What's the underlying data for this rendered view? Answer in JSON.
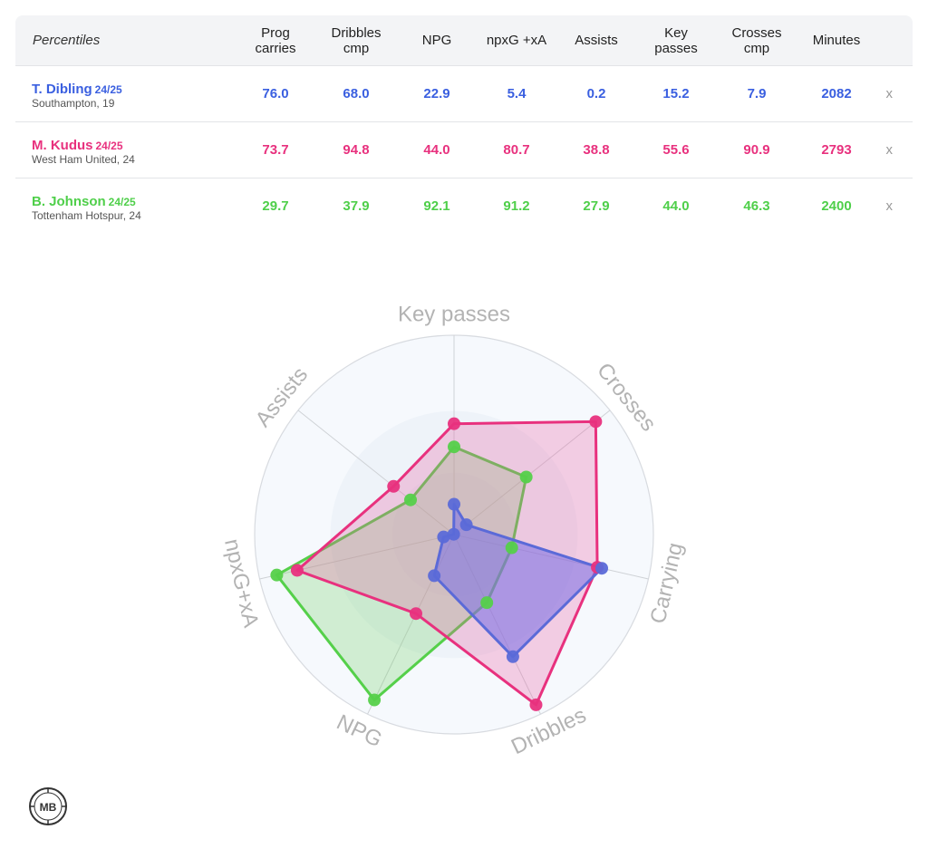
{
  "table": {
    "header_label": "Percentiles",
    "columns": [
      {
        "line1": "Prog",
        "line2": "carries"
      },
      {
        "line1": "Dribbles",
        "line2": "cmp"
      },
      {
        "line1": "NPG",
        "line2": ""
      },
      {
        "line1": "npxG +xA",
        "line2": ""
      },
      {
        "line1": "Assists",
        "line2": ""
      },
      {
        "line1": "Key",
        "line2": "passes"
      },
      {
        "line1": "Crosses",
        "line2": "cmp"
      },
      {
        "line1": "Minutes",
        "line2": ""
      }
    ],
    "remove_label": "x",
    "players": [
      {
        "name": "T. Dibling",
        "season": "24/25",
        "club": "Southampton, 19",
        "color": "#3a5fe0",
        "values": [
          "76.0",
          "68.0",
          "22.9",
          "5.4",
          "0.2",
          "15.2",
          "7.9",
          "2082"
        ]
      },
      {
        "name": "M. Kudus",
        "season": "24/25",
        "club": "West Ham United, 24",
        "color": "#e8317e",
        "values": [
          "73.7",
          "94.8",
          "44.0",
          "80.7",
          "38.8",
          "55.6",
          "90.9",
          "2793"
        ]
      },
      {
        "name": "B. Johnson",
        "season": "24/25",
        "club": "Tottenham Hotspur, 24",
        "color": "#4fcf4a",
        "values": [
          "29.7",
          "37.9",
          "92.1",
          "91.2",
          "27.9",
          "44.0",
          "46.3",
          "2400"
        ]
      }
    ]
  },
  "chart_data": {
    "type": "radar",
    "axes": [
      "Key passes",
      "Crosses",
      "Carrying",
      "Dribbles",
      "NPG",
      "npxG+xA",
      "Assists"
    ],
    "range": [
      0,
      100
    ],
    "series": [
      {
        "name": "T. Dibling",
        "color": "#5b6ad8",
        "fill": "rgba(120,110,230,0.55)",
        "values": [
          15.2,
          7.9,
          76.0,
          68.0,
          22.9,
          5.4,
          0.2
        ]
      },
      {
        "name": "M. Kudus",
        "color": "#e8317e",
        "fill": "rgba(232,90,160,0.28)",
        "values": [
          55.6,
          90.9,
          73.7,
          94.8,
          44.0,
          80.7,
          38.8
        ]
      },
      {
        "name": "B. Johnson",
        "color": "#55d04a",
        "fill": "rgba(110,210,100,0.28)",
        "values": [
          44.0,
          46.3,
          29.7,
          37.9,
          92.1,
          91.2,
          27.9
        ]
      }
    ]
  },
  "logo_text": "MB"
}
